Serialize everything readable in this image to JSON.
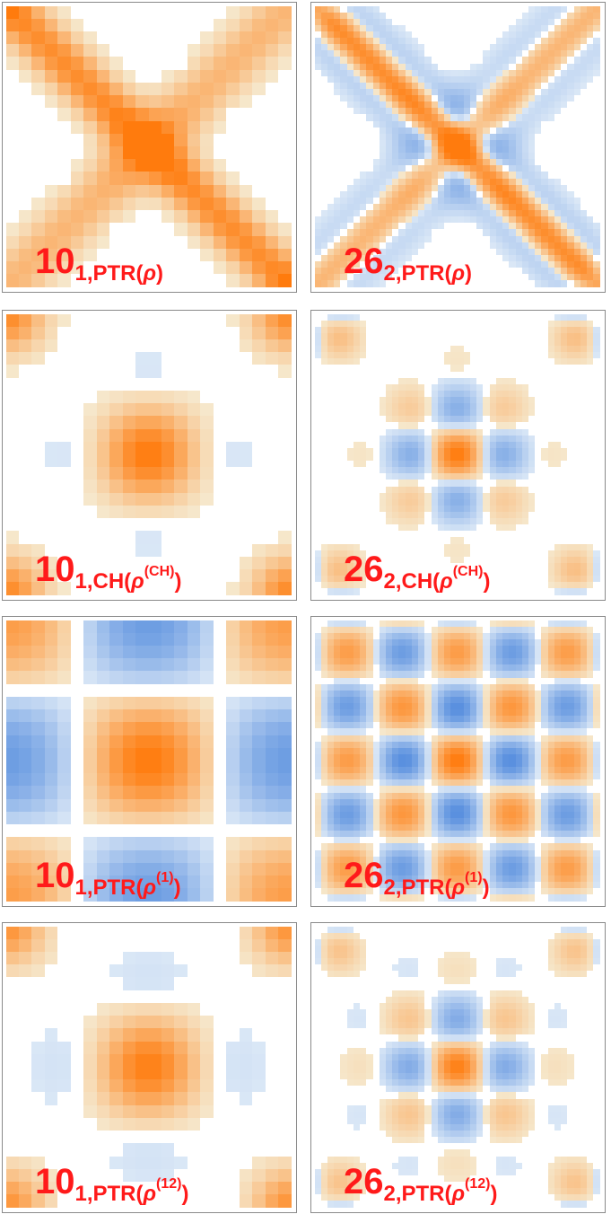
{
  "colors": {
    "positive": "#ff7b0d",
    "negative": "#3b7bd9",
    "label": "#ff1a1a",
    "frame": "#8a8a8a"
  },
  "panels": [
    {
      "row": 0,
      "col": 0,
      "number": "10",
      "sub_prefix": "1,PTR(",
      "rho": "ρ",
      "sup": "",
      "close": ")",
      "pattern": "ptr_rho",
      "k": 10,
      "cells": 22
    },
    {
      "row": 0,
      "col": 1,
      "number": "26",
      "sub_prefix": "2,PTR(",
      "rho": "ρ",
      "sup": "",
      "close": ")",
      "pattern": "ptr_rho",
      "k": 26,
      "cells": 44
    },
    {
      "row": 1,
      "col": 0,
      "number": "10",
      "sub_prefix": "1,CH(",
      "rho": "ρ",
      "sup": "(CH)",
      "close": ")",
      "pattern": "ch",
      "k": 10,
      "cells": 22
    },
    {
      "row": 1,
      "col": 1,
      "number": "26",
      "sub_prefix": "2,CH(",
      "rho": "ρ",
      "sup": "(CH)",
      "close": ")",
      "pattern": "ch",
      "k": 26,
      "cells": 44
    },
    {
      "row": 2,
      "col": 0,
      "number": "10",
      "sub_prefix": "1,PTR(",
      "rho": "ρ",
      "sup": "(1)",
      "close": ")",
      "pattern": "ptr1",
      "k": 10,
      "cells": 22
    },
    {
      "row": 2,
      "col": 1,
      "number": "26",
      "sub_prefix": "2,PTR(",
      "rho": "ρ",
      "sup": "(1)",
      "close": ")",
      "pattern": "ptr1",
      "k": 26,
      "cells": 44
    },
    {
      "row": 3,
      "col": 0,
      "number": "10",
      "sub_prefix": "1,PTR(",
      "rho": "ρ",
      "sup": "(12)",
      "close": ")",
      "pattern": "ptr12",
      "k": 10,
      "cells": 22
    },
    {
      "row": 3,
      "col": 1,
      "number": "26",
      "sub_prefix": "2,PTR(",
      "rho": "ρ",
      "sup": "(12)",
      "close": ")",
      "pattern": "ptr12",
      "k": 26,
      "cells": 44
    }
  ]
}
